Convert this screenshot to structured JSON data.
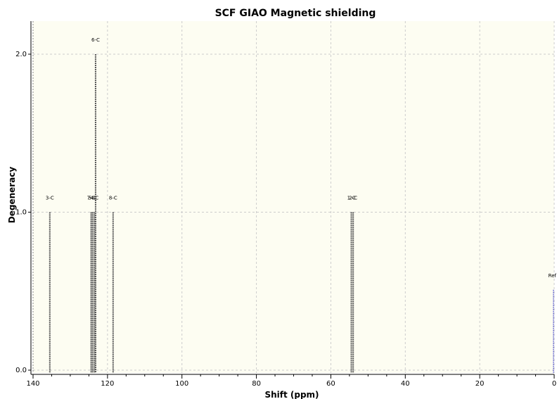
{
  "chart_data": {
    "type": "bar",
    "title": "SCF GIAO Magnetic shielding",
    "xlabel": "Shift (ppm)",
    "ylabel": "Degeneracy",
    "xlim": [
      140,
      0
    ],
    "ylim": [
      0,
      2.2
    ],
    "x_ticks": [
      140,
      120,
      100,
      80,
      60,
      40,
      20,
      0
    ],
    "x_tick_labels": [
      "140",
      "120",
      "100",
      "80",
      "60",
      "40",
      "20",
      "0"
    ],
    "y_ticks": [
      0,
      1,
      2
    ],
    "y_tick_labels": [
      "0.0",
      "1.0",
      "2.0"
    ],
    "grid": true,
    "colors": {
      "background": "#fdfdf2",
      "peak": "#555555",
      "reference": "#3333cc",
      "grid": "#cccccc"
    },
    "peaks": [
      {
        "label": "3-C",
        "shift": 135.5,
        "degeneracy": 1
      },
      {
        "label": "7-C",
        "shift": 124.4,
        "degeneracy": 1
      },
      {
        "label": "5-C",
        "shift": 124.0,
        "degeneracy": 1
      },
      {
        "label": "4-C",
        "shift": 123.5,
        "degeneracy": 1
      },
      {
        "label": "6-C",
        "shift": 123.2,
        "degeneracy": 2
      },
      {
        "label": "8-C",
        "shift": 118.5,
        "degeneracy": 1
      },
      {
        "label": "1-C",
        "shift": 54.5,
        "degeneracy": 1
      },
      {
        "label": "2-C",
        "shift": 54.0,
        "degeneracy": 1
      }
    ],
    "reference": {
      "label": "Ref",
      "shift": 0,
      "degeneracy": 0.5
    }
  }
}
